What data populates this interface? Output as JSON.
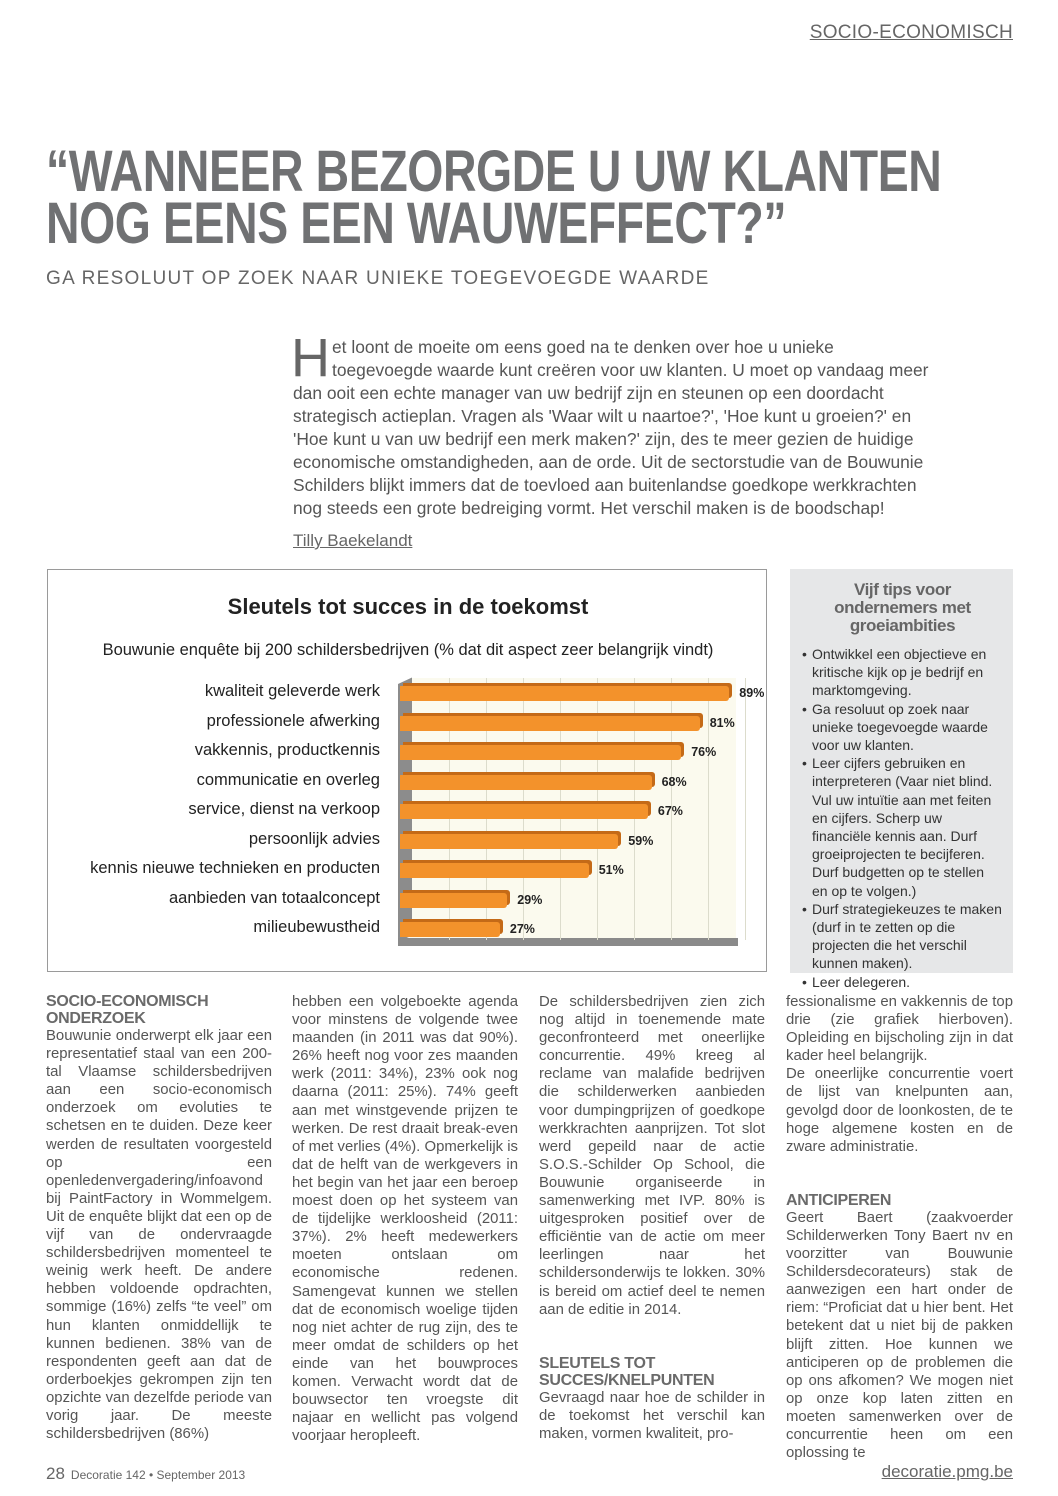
{
  "section": "SOCIO-ECONOMISCH",
  "headline": [
    "“WANNEER BEZORGDE U UW KLANTEN",
    "NOG EENS EEN WAUWEFFECT?”"
  ],
  "subtitle": "GA RESOLUUT OP ZOEK NAAR UNIEKE TOEGEVOEGDE WAARDE",
  "intro": {
    "dropcap": "H",
    "text": "et loont de moeite om eens goed na te denken over hoe u unieke toegevoegde waarde kunt creëren voor uw klanten. U moet op vandaag meer dan ooit een echte manager van uw bedrijf zijn en steunen op een doordacht strategisch actieplan. Vragen als 'Waar wilt u naartoe?', 'Hoe kunt u groeien?' en 'Hoe kunt u van uw bedrijf een merk maken?' zijn, des te meer gezien de huidige economische omstandigheden, aan de orde. Uit de sectorstudie van de Bouwunie Schilders blijkt immers dat de toevloed aan buitenlandse goedkope werkkrachten nog steeds een grote bedreiging vormt. Het verschil maken is de boodschap!",
    "author": "Tilly Baekelandt"
  },
  "chart_data": {
    "type": "bar",
    "orientation": "horizontal",
    "title": "Sleutels tot succes in de toekomst",
    "subtitle": "Bouwunie enquête bij 200 schildersbedrijven (% dat dit aspect zeer belangrijk vindt)",
    "categories": [
      "kwaliteit geleverde werk",
      "professionele afwerking",
      "vakkennis, productkennis",
      "communicatie en overleg",
      "service, dienst na verkoop",
      "persoonlijk advies",
      "kennis nieuwe technieken en producten",
      "aanbieden van totaalconcept",
      "milieubewustheid"
    ],
    "values": [
      89,
      81,
      76,
      68,
      67,
      59,
      51,
      29,
      27
    ],
    "value_labels": [
      "89%",
      "81%",
      "76%",
      "68%",
      "67%",
      "59%",
      "51%",
      "29%",
      "27%"
    ],
    "xlim": [
      0,
      90
    ],
    "grid": true,
    "bar_color": "#f3922b"
  },
  "tips": {
    "title": "Vijf tips voor ondernemers met groeiambities",
    "items": [
      "Ontwikkel een objectieve en kritische kijk op je bedrijf en marktomgeving.",
      "Ga resoluut op zoek naar unieke toegevoegde waarde voor uw klanten.",
      "Leer cijfers gebruiken en interpreteren (Vaar niet blind. Vul uw intuïtie aan met feiten en cijfers. Scherp uw financiële kennis aan. Durf groeiprojecten te becijferen. Durf budgetten op te stellen en op te volgen.)",
      "Durf strategiekeuzes te maken (durf in te zetten op die projecten die het verschil kunnen maken).",
      "Leer delegeren."
    ]
  },
  "body": {
    "h1": "SOCIO-ECONOMISCH ONDERZOEK",
    "p1": "Bouwunie onderwerpt elk jaar een representatief staal van een 200-tal Vlaamse schildersbedrijven aan een socio-economisch onderzoek om evoluties te schetsen en te duiden. Deze keer werden de resultaten voorgesteld op een openledenvergadering/infoavond bij PaintFactory in Wommelgem. Uit de enquête blijkt dat een op de vijf van de ondervraagde schildersbedrijven momenteel te weinig werk heeft. De andere hebben voldoende opdrachten, sommige (16%) zelfs “te veel” om hun klanten onmiddellijk te kunnen bedienen. 38% van de respondenten geeft aan dat de orderboekjes gekrompen zijn ten opzichte van dezelfde periode van vorig jaar. De meeste schildersbedrijven (86%)",
    "p2": "hebben een volgeboekte agenda voor minstens de volgende twee maanden (in 2011 was dat 90%). 26% heeft nog voor zes maanden werk (2011: 34%), 23% ook nog daarna (2011: 25%). 74% geeft aan met winstgevende prijzen te werken. De rest draait break-even of met verlies (4%). Opmerkelijk is dat de helft van de werkgevers in het begin van het jaar een beroep moest doen op het systeem van de tijdelijke werkloosheid (2011: 37%). 2% heeft medewerkers moeten ontslaan om economische redenen. Samengevat kunnen we stellen dat de economisch woelige tijden nog niet achter de rug zijn, des te meer omdat de schilders op het einde van het bouwproces komen. Verwacht wordt dat de bouwsector ten vroegste dit najaar en wellicht pas volgend voorjaar heropleeft.",
    "p3": "De schildersbedrijven zien zich nog altijd in toenemende mate geconfronteerd met oneerlijke concurrentie. 49% kreeg al reclame van malafide bedrijven die schilderwerken aanbieden voor dumpingprijzen of goedkope werkkrachten aanprijzen. Tot slot werd gepeild naar de actie S.O.S.-Schilder Op School, die Bouwunie organiseerde in samenwerking met IVP. 80% is uitgesproken positief over de efficiëntie van de actie om meer leerlingen naar het schildersonderwijs te lokken. 30% is bereid om actief deel te nemen aan de editie in 2014.",
    "h2": "SLEUTELS TOT SUCCES/KNELPUNTEN",
    "p4": "Gevraagd naar hoe de schilder in de toekomst het verschil kan maken, vormen kwaliteit, pro-",
    "p5": "fessionalisme en vakkennis de top drie (zie grafiek hierboven). Opleiding en bijscholing zijn in dat kader heel belangrijk.",
    "p6": "De oneerlijke concurrentie voert de lijst van knelpunten aan, gevolgd door de loonkosten, de te hoge algemene kosten en de zware administratie.",
    "h3": "ANTICIPEREN",
    "p7": "Geert Baert (zaakvoerder Schilderwerken Tony Baert nv en voorzitter van Bouwunie Schildersdecorateurs) stak de aanwezigen een hart onder de riem: “Proficiat dat u hier bent. Het betekent dat u niet bij de pakken blijft zitten. Hoe kunnen we anticiperen op de problemen die op ons afkomen? We mogen niet op onze kop laten zitten en moeten samenwerken over de concurrentie heen om een oplossing te"
  },
  "footer": {
    "page": "28",
    "issue": "Decoratie 142 • September 2013",
    "url": "decoratie.pmg.be"
  }
}
